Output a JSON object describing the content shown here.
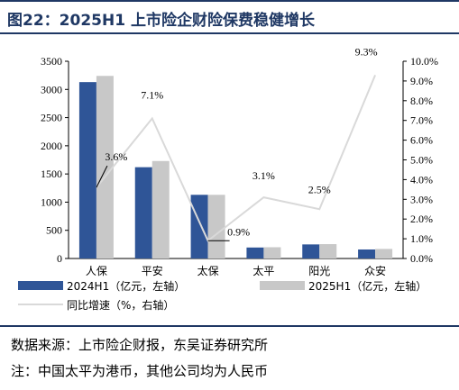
{
  "title": "图22：2025H1 上市险企财险保费稳健增长",
  "source_note": "数据来源：上市险企财报，东吴证券研究所",
  "footnote": "注：中国太平为港币，其他公司均为人民币",
  "colors": {
    "series1": "#2f5597",
    "series2": "#c8c8c8",
    "growth": "#d9d9d9",
    "title": "#1f3864"
  },
  "chart_data": {
    "type": "bar",
    "categories": [
      "人保",
      "平安",
      "太保",
      "太平",
      "阳光",
      "众安"
    ],
    "series": [
      {
        "name": "2024H1（亿元，左轴）",
        "type": "bar",
        "axis": "left",
        "values": [
          3130,
          1620,
          1130,
          195,
          250,
          160
        ]
      },
      {
        "name": "2025H1（亿元，左轴）",
        "type": "bar",
        "axis": "left",
        "values": [
          3240,
          1730,
          1130,
          200,
          255,
          170
        ]
      },
      {
        "name": "同比增速（%，右轴）",
        "type": "line",
        "axis": "right",
        "values": [
          3.6,
          7.1,
          0.9,
          3.1,
          2.5,
          9.3
        ]
      }
    ],
    "growth_labels": [
      "3.6%",
      "7.1%",
      "0.9%",
      "3.1%",
      "2.5%",
      "9.3%"
    ],
    "y_left": {
      "min": 0,
      "max": 3500,
      "ticks": [
        "0",
        "500",
        "1000",
        "1500",
        "2000",
        "2500",
        "3000",
        "3500"
      ]
    },
    "y_right": {
      "min": 0,
      "max": 10,
      "ticks": [
        "0.0%",
        "1.0%",
        "2.0%",
        "3.0%",
        "4.0%",
        "5.0%",
        "6.0%",
        "7.0%",
        "8.0%",
        "9.0%",
        "10.0%"
      ]
    },
    "legend_placement": "bottom",
    "grid": false
  }
}
